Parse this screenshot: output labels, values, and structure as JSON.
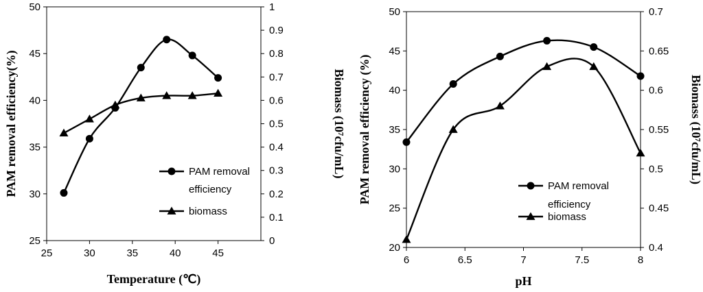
{
  "chart_data": [
    {
      "type": "line",
      "xlabel": "Temperature (℃)",
      "ylabel": "PAM removal efficiency(%)",
      "y2label": "Biomass (10⁷cfu/mL)",
      "xlim": [
        25,
        50
      ],
      "ylim": [
        25,
        50
      ],
      "y2lim": [
        0,
        1
      ],
      "xticks": [
        "25",
        "30",
        "35",
        "40",
        "45"
      ],
      "yticks": [
        "25",
        "30",
        "35",
        "40",
        "45",
        "50"
      ],
      "y2ticks": [
        "0",
        "0.1",
        "0.2",
        "0.3",
        "0.4",
        "0.5",
        "0.6",
        "0.7",
        "0.8",
        "0.9",
        "1"
      ],
      "grid": false,
      "legend": "bottom-right",
      "series": [
        {
          "name": "PAM removal efficiency",
          "axis": "left",
          "marker": "circle",
          "x": [
            27,
            30,
            33,
            36,
            39,
            42,
            45
          ],
          "y": [
            30.1,
            35.9,
            39.2,
            43.5,
            46.5,
            44.8,
            42.4
          ]
        },
        {
          "name": "biomass",
          "axis": "right",
          "marker": "triangle",
          "x": [
            27,
            30,
            33,
            36,
            39,
            42,
            45
          ],
          "y": [
            0.46,
            0.52,
            0.58,
            0.61,
            0.62,
            0.62,
            0.63
          ]
        }
      ]
    },
    {
      "type": "line",
      "xlabel": "pH",
      "ylabel": "PAM removal efficiency (%)",
      "y2label": "Biomass (10⁷cfu/mL)",
      "xlim": [
        6,
        8
      ],
      "ylim": [
        20,
        50
      ],
      "y2lim": [
        0.4,
        0.7
      ],
      "xticks": [
        "6",
        "6.5",
        "7",
        "7.5",
        "8"
      ],
      "yticks": [
        "20",
        "25",
        "30",
        "35",
        "40",
        "45",
        "50"
      ],
      "y2ticks": [
        "0.4",
        "0.45",
        "0.5",
        "0.55",
        "0.6",
        "0.65",
        "0.7"
      ],
      "grid": false,
      "legend": "bottom-right",
      "series": [
        {
          "name": "PAM removal efficiency",
          "axis": "left",
          "marker": "circle",
          "x": [
            6,
            6.4,
            6.8,
            7.2,
            7.6,
            8
          ],
          "y": [
            33.4,
            40.8,
            44.3,
            46.3,
            45.5,
            41.8
          ]
        },
        {
          "name": "biomass",
          "axis": "right",
          "marker": "triangle",
          "x": [
            6,
            6.4,
            6.8,
            7.2,
            7.6,
            8
          ],
          "y": [
            0.41,
            0.55,
            0.58,
            0.63,
            0.63,
            0.52
          ]
        }
      ]
    }
  ]
}
